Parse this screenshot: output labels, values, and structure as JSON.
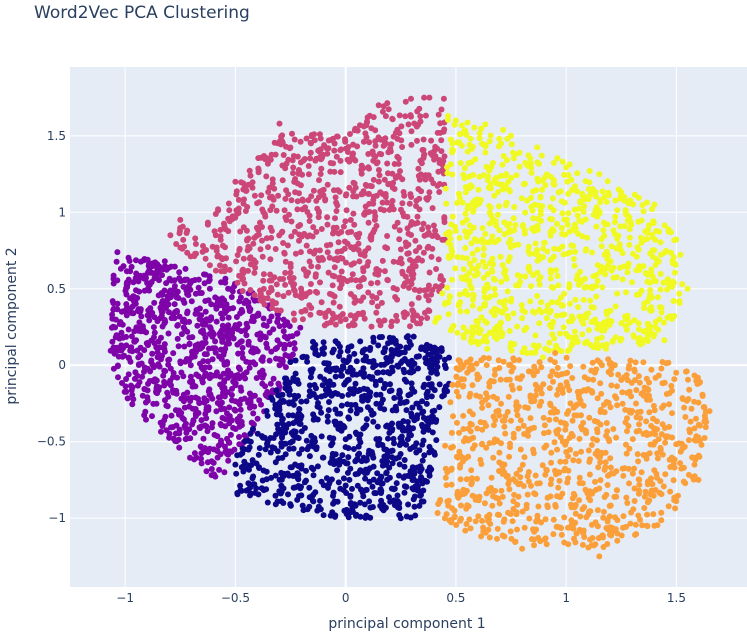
{
  "chart_data": {
    "type": "scatter",
    "title": "Word2Vec PCA Clustering",
    "xlabel": "principal component 1",
    "ylabel": "principal component 2",
    "xlim": [
      -1.25,
      1.82
    ],
    "ylim": [
      -1.45,
      1.95
    ],
    "grid": true,
    "legend": "none",
    "x_ticks": [
      -1,
      -0.5,
      0,
      0.5,
      1,
      1.5
    ],
    "y_ticks": [
      -1,
      -0.5,
      0,
      0.5,
      1,
      1.5
    ],
    "x_tick_labels": [
      "−1",
      "−0.5",
      "0",
      "0.5",
      "1",
      "1.5"
    ],
    "y_tick_labels": [
      "−1",
      "−0.5",
      "0",
      "0.5",
      "1",
      "1.5"
    ],
    "colors": {
      "plot_bg": "#e5ecf6",
      "grid": "#ffffff",
      "text": "#2a3f5f"
    },
    "clusters": [
      {
        "color": "#7e03a8",
        "center": [
          -0.72,
          -0.15
        ],
        "bounds": [
          [
            -1.05,
            0.75
          ],
          [
            -1.07,
            -0.05
          ],
          [
            -0.95,
            -0.3
          ],
          [
            -0.6,
            -0.75
          ],
          [
            -0.45,
            -0.5
          ],
          [
            -0.25,
            -0.05
          ],
          [
            -0.2,
            0.25
          ],
          [
            -0.5,
            0.55
          ]
        ],
        "sample_points": [
          [
            -1.05,
            0.1
          ],
          [
            -0.95,
            0.6
          ],
          [
            -0.82,
            0.68
          ],
          [
            -0.62,
            0.55
          ],
          [
            -0.4,
            0.2
          ],
          [
            -0.3,
            0.0
          ],
          [
            -0.55,
            -0.7
          ],
          [
            -0.72,
            -0.48
          ],
          [
            -0.92,
            -0.2
          ],
          [
            -0.7,
            0.05
          ]
        ]
      },
      {
        "color": "#cc4778",
        "center": [
          0.05,
          0.85
        ],
        "bounds": [
          [
            -0.85,
            0.85
          ],
          [
            -0.55,
            1.05
          ],
          [
            -0.3,
            1.55
          ],
          [
            0.0,
            1.5
          ],
          [
            0.2,
            1.75
          ],
          [
            0.45,
            1.75
          ],
          [
            0.45,
            0.55
          ],
          [
            0.35,
            0.25
          ],
          [
            0.0,
            0.25
          ],
          [
            -0.2,
            0.25
          ],
          [
            -0.55,
            0.55
          ]
        ],
        "sample_points": [
          [
            -0.75,
            0.95
          ],
          [
            -0.5,
            1.2
          ],
          [
            -0.3,
            1.58
          ],
          [
            -0.05,
            1.45
          ],
          [
            0.15,
            1.7
          ],
          [
            0.38,
            1.75
          ],
          [
            0.3,
            0.4
          ],
          [
            0.0,
            0.3
          ],
          [
            -0.2,
            0.35
          ],
          [
            0.1,
            1.0
          ]
        ]
      },
      {
        "color": "#f0f921",
        "center": [
          0.85,
          0.75
        ],
        "bounds": [
          [
            0.45,
            1.65
          ],
          [
            0.7,
            1.55
          ],
          [
            1.0,
            1.35
          ],
          [
            1.3,
            1.2
          ],
          [
            1.5,
            0.85
          ],
          [
            1.55,
            0.55
          ],
          [
            1.45,
            0.15
          ],
          [
            0.9,
            0.05
          ],
          [
            0.65,
            0.1
          ],
          [
            0.4,
            0.25
          ],
          [
            0.45,
            0.6
          ]
        ],
        "sample_points": [
          [
            0.5,
            1.6
          ],
          [
            0.75,
            1.5
          ],
          [
            1.15,
            1.25
          ],
          [
            1.4,
            1.05
          ],
          [
            1.55,
            0.5
          ],
          [
            1.4,
            0.2
          ],
          [
            0.95,
            0.1
          ],
          [
            0.6,
            0.15
          ],
          [
            0.45,
            0.4
          ],
          [
            0.9,
            0.8
          ]
        ]
      },
      {
        "color": "#0d0887",
        "center": [
          0.0,
          -0.4
        ],
        "bounds": [
          [
            -0.5,
            -0.6
          ],
          [
            -0.3,
            -0.1
          ],
          [
            -0.2,
            0.15
          ],
          [
            0.0,
            0.18
          ],
          [
            0.35,
            0.2
          ],
          [
            0.5,
            0.05
          ],
          [
            0.45,
            -0.25
          ],
          [
            0.35,
            -1.0
          ],
          [
            -0.05,
            -1.0
          ],
          [
            -0.5,
            -0.85
          ]
        ],
        "sample_points": [
          [
            -0.5,
            -0.65
          ],
          [
            -0.3,
            -0.2
          ],
          [
            -0.1,
            0.15
          ],
          [
            0.2,
            0.18
          ],
          [
            0.45,
            0.0
          ],
          [
            0.38,
            -0.7
          ],
          [
            0.25,
            -1.0
          ],
          [
            -0.1,
            -0.98
          ],
          [
            -0.45,
            -0.82
          ],
          [
            0.05,
            -0.45
          ]
        ]
      },
      {
        "color": "#fb9f3a",
        "center": [
          1.0,
          -0.5
        ],
        "bounds": [
          [
            0.5,
            0.05
          ],
          [
            0.9,
            0.05
          ],
          [
            1.25,
            0.05
          ],
          [
            1.6,
            0.0
          ],
          [
            1.65,
            -0.3
          ],
          [
            1.6,
            -0.7
          ],
          [
            1.45,
            -1.05
          ],
          [
            1.15,
            -1.2
          ],
          [
            0.85,
            -1.2
          ],
          [
            0.55,
            -1.1
          ],
          [
            0.4,
            -1.0
          ],
          [
            0.45,
            -0.5
          ]
        ],
        "sample_points": [
          [
            0.55,
            0.02
          ],
          [
            0.95,
            0.08
          ],
          [
            1.35,
            0.02
          ],
          [
            1.65,
            -0.3
          ],
          [
            1.6,
            -0.75
          ],
          [
            1.4,
            -1.05
          ],
          [
            1.15,
            -1.25
          ],
          [
            0.8,
            -1.2
          ],
          [
            0.45,
            -1.0
          ],
          [
            1.0,
            -0.5
          ]
        ]
      }
    ]
  }
}
